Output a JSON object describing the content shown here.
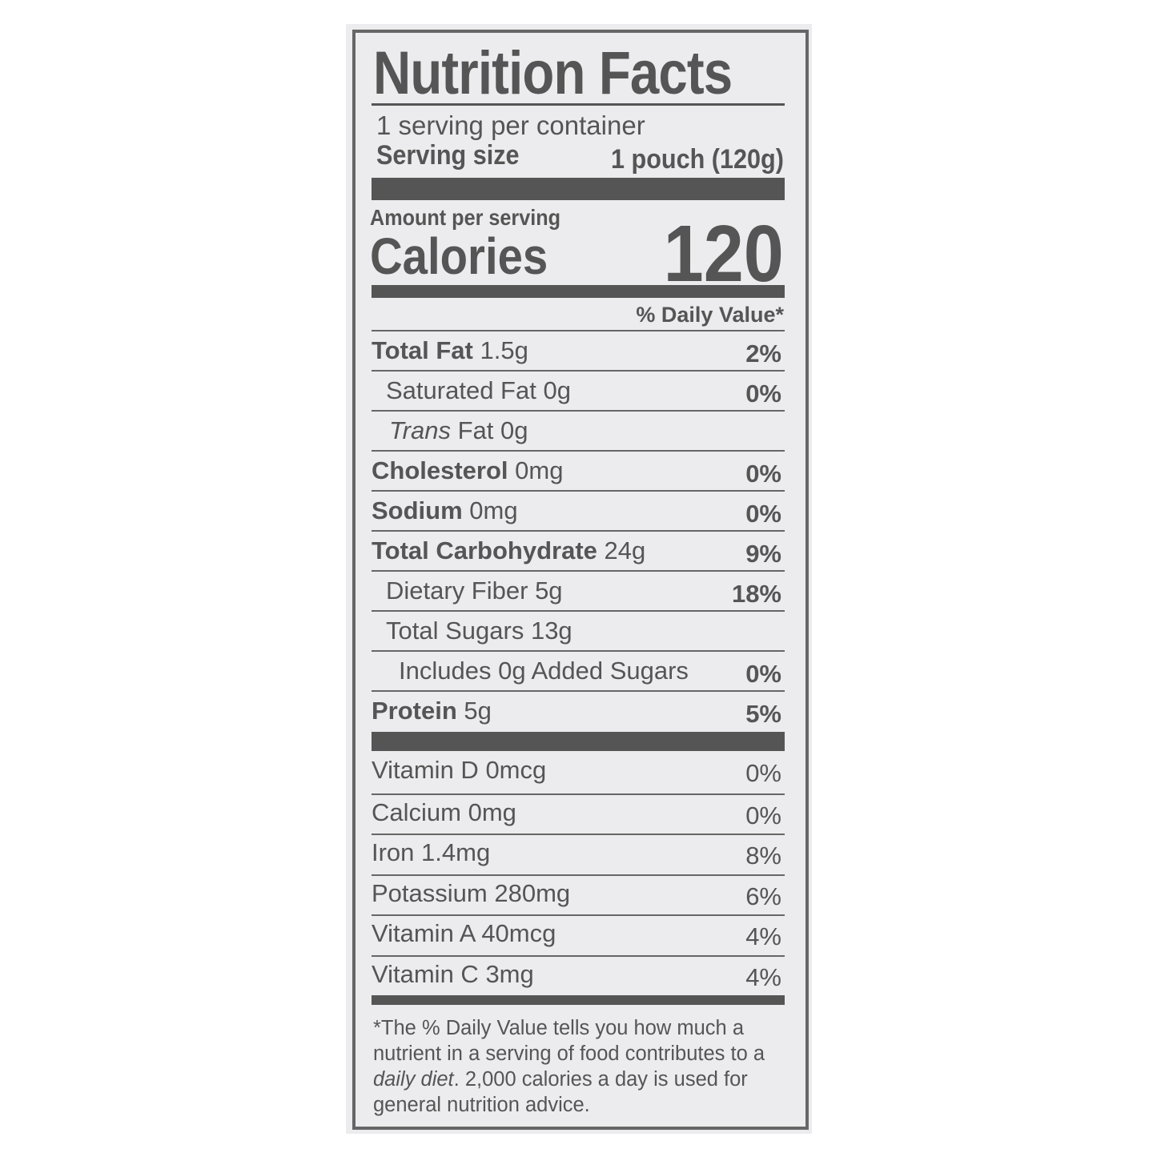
{
  "title": "Nutrition Facts",
  "servings_per_container": "1 serving per container",
  "serving_size_label": "Serving size",
  "serving_size_value": "1 pouch (120g)",
  "amount_per_serving": "Amount per serving",
  "calories_label": "Calories",
  "calories_value": "120",
  "daily_value_header": "% Daily Value*",
  "nutrients": [
    {
      "name": "Total Fat",
      "amount": "1.5g",
      "dv": "2%"
    },
    {
      "name": "Saturated Fat",
      "amount": "0g",
      "dv": "0%"
    },
    {
      "name": "Trans",
      "name_suffix": "Fat",
      "amount": "0g",
      "dv": ""
    },
    {
      "name": "Cholesterol",
      "amount": "0mg",
      "dv": "0%"
    },
    {
      "name": "Sodium",
      "amount": "0mg",
      "dv": "0%"
    },
    {
      "name": "Total Carbohydrate",
      "amount": "24g",
      "dv": "9%"
    },
    {
      "name": "Dietary Fiber",
      "amount": "5g",
      "dv": "18%"
    },
    {
      "name": "Total Sugars",
      "amount": "13g",
      "dv": ""
    },
    {
      "name": "Includes 0g Added Sugars",
      "amount": "",
      "dv": "0%"
    },
    {
      "name": "Protein",
      "amount": "5g",
      "dv": "5%"
    }
  ],
  "vitamins": [
    {
      "name": "Vitamin D",
      "amount": "0mcg",
      "dv": "0%"
    },
    {
      "name": "Calcium",
      "amount": "0mg",
      "dv": "0%"
    },
    {
      "name": "Iron",
      "amount": "1.4mg",
      "dv": "8%"
    },
    {
      "name": "Potassium",
      "amount": "280mg",
      "dv": "6%"
    },
    {
      "name": "Vitamin A",
      "amount": "40mcg",
      "dv": "4%"
    },
    {
      "name": "Vitamin C",
      "amount": "3mg",
      "dv": "4%"
    }
  ],
  "footnote": {
    "p1": "*The % Daily Value tells you how much a nutrient in a serving of food contributes to a ",
    "p2": "daily diet",
    "p3": ". 2,000 calories a day is used for general nutrition advice."
  },
  "colors": {
    "ink": "#555555",
    "background": "#ececee"
  }
}
